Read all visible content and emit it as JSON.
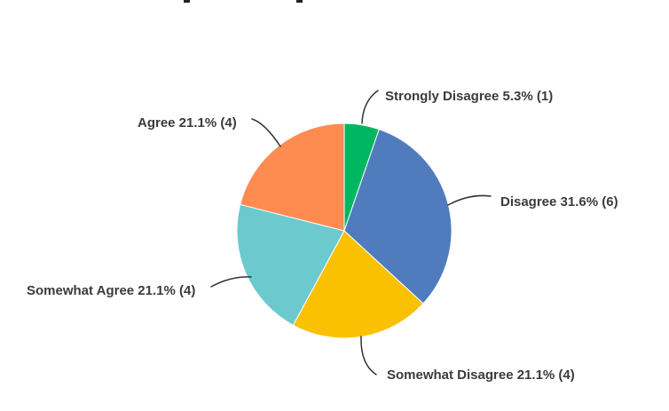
{
  "page": {
    "background": "#ffffff"
  },
  "chart_data": {
    "type": "pie",
    "title": "",
    "legend_position": "none",
    "label_style": "outside-callouts",
    "direction": "clockwise",
    "start_angle_deg": 0,
    "callout_line_color": "#333333",
    "label_text_color": "#3b3b3b",
    "slices": [
      {
        "id": "strongly-disagree",
        "category": "Strongly Disagree",
        "percent": 5.3,
        "count": 1,
        "color": "#00B761",
        "label": "Strongly Disagree 5.3% (1)"
      },
      {
        "id": "disagree",
        "category": "Disagree",
        "percent": 31.6,
        "count": 6,
        "color": "#507CBE",
        "label": "Disagree 31.6% (6)"
      },
      {
        "id": "somewhat-disagree",
        "category": "Somewhat Disagree",
        "percent": 21.1,
        "count": 4,
        "color": "#F9C101",
        "label": "Somewhat Disagree 21.1% (4)"
      },
      {
        "id": "somewhat-agree",
        "category": "Somewhat Agree",
        "percent": 21.1,
        "count": 4,
        "color": "#6CC9CE",
        "label": "Somewhat Agree 21.1% (4)"
      },
      {
        "id": "agree",
        "category": "Agree",
        "percent": 21.1,
        "count": 4,
        "color": "#FE8C51",
        "label": "Agree 21.1% (4)"
      }
    ]
  }
}
